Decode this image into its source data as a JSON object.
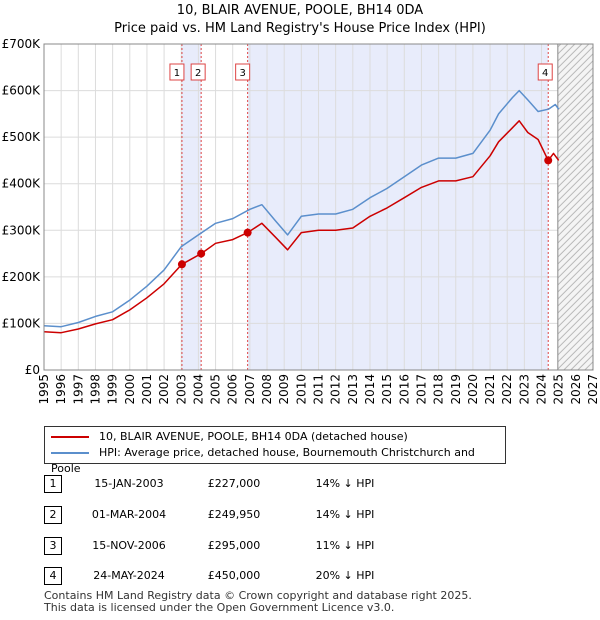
{
  "title_line1": "10, BLAIR AVENUE, POOLE, BH14 0DA",
  "title_line2": "Price paid vs. HM Land Registry's House Price Index (HPI)",
  "colors": {
    "property": "#cc0000",
    "hpi": "#5b8fcc",
    "sale_shade": "#e8ecfb",
    "marker_line": "#dd4444"
  },
  "legend": {
    "property_label": "10, BLAIR AVENUE, POOLE, BH14 0DA (detached house)",
    "hpi_label": "HPI: Average price, detached house, Bournemouth Christchurch and Poole"
  },
  "transactions": [
    {
      "num": "1",
      "date": "15-JAN-2003",
      "price": "£227,000",
      "hpi_diff": "14% ↓ HPI"
    },
    {
      "num": "2",
      "date": "01-MAR-2004",
      "price": "£249,950",
      "hpi_diff": "14% ↓ HPI"
    },
    {
      "num": "3",
      "date": "15-NOV-2006",
      "price": "£295,000",
      "hpi_diff": "11% ↓ HPI"
    },
    {
      "num": "4",
      "date": "24-MAY-2024",
      "price": "£450,000",
      "hpi_diff": "20% ↓ HPI"
    }
  ],
  "footer_line1": "Contains HM Land Registry data © Crown copyright and database right 2025.",
  "footer_line2": "This data is licensed under the Open Government Licence v3.0.",
  "chart_data": {
    "type": "line",
    "title": "10, BLAIR AVENUE, POOLE, BH14 0DA — Price paid vs. HM Land Registry's House Price Index (HPI)",
    "xlabel": "",
    "ylabel": "",
    "xlim": [
      1995,
      2027
    ],
    "ylim": [
      0,
      700000
    ],
    "x_ticks": [
      1995,
      1996,
      1997,
      1998,
      1999,
      2000,
      2001,
      2002,
      2003,
      2004,
      2005,
      2006,
      2007,
      2008,
      2009,
      2010,
      2011,
      2012,
      2013,
      2014,
      2015,
      2016,
      2017,
      2018,
      2019,
      2020,
      2021,
      2022,
      2023,
      2024,
      2025,
      2026,
      2027
    ],
    "y_ticks": [
      {
        "value": 0,
        "label": "£0"
      },
      {
        "value": 100000,
        "label": "£100K"
      },
      {
        "value": 200000,
        "label": "£200K"
      },
      {
        "value": 300000,
        "label": "£300K"
      },
      {
        "value": 400000,
        "label": "£400K"
      },
      {
        "value": 500000,
        "label": "£500K"
      },
      {
        "value": 600000,
        "label": "£600K"
      },
      {
        "value": 700000,
        "label": "£700K"
      }
    ],
    "grid": true,
    "forecast_from": 2024.95,
    "series": [
      {
        "name": "HPI: Average price, detached house, Bournemouth Christchurch and Poole",
        "x": [
          1995,
          1996,
          1997,
          1998,
          1999,
          2000,
          2001,
          2002,
          2003,
          2004,
          2005,
          2006,
          2007,
          2007.7,
          2008.5,
          2009.2,
          2010,
          2011,
          2012,
          2013,
          2014,
          2015,
          2016,
          2017,
          2018,
          2019,
          2020,
          2021,
          2021.5,
          2022.3,
          2022.7,
          2023.2,
          2023.8,
          2024.4,
          2024.8,
          2025
        ],
        "values": [
          95000,
          93000,
          102000,
          115000,
          125000,
          150000,
          180000,
          215000,
          265000,
          290000,
          315000,
          325000,
          345000,
          355000,
          320000,
          290000,
          330000,
          335000,
          335000,
          345000,
          370000,
          390000,
          415000,
          440000,
          455000,
          455000,
          465000,
          515000,
          550000,
          585000,
          600000,
          580000,
          555000,
          560000,
          570000,
          560000
        ]
      },
      {
        "name": "10, BLAIR AVENUE, POOLE, BH14 0DA (detached house)",
        "x": [
          1995,
          1996,
          1997,
          1998,
          1999,
          2000,
          2001,
          2002,
          2003.04,
          2004.16,
          2005,
          2006,
          2006.87,
          2007.7,
          2008.5,
          2009.2,
          2010,
          2011,
          2012,
          2013,
          2014,
          2015,
          2016,
          2017,
          2018,
          2019,
          2020,
          2021,
          2021.5,
          2022.3,
          2022.7,
          2023.2,
          2023.8,
          2024.39,
          2024.7,
          2025
        ],
        "values": [
          82000,
          80000,
          88000,
          99000,
          108000,
          129000,
          155000,
          185000,
          227000,
          249950,
          272000,
          280000,
          295000,
          315000,
          285000,
          258000,
          295000,
          300000,
          300000,
          305000,
          330000,
          348000,
          370000,
          392000,
          406000,
          406000,
          415000,
          460000,
          490000,
          520000,
          535000,
          510000,
          495000,
          450000,
          465000,
          450000
        ]
      }
    ],
    "sales": [
      {
        "num": "1",
        "x": 2003.04,
        "value": 227000
      },
      {
        "num": "2",
        "x": 2004.16,
        "value": 249950
      },
      {
        "num": "3",
        "x": 2006.87,
        "value": 295000
      },
      {
        "num": "4",
        "x": 2024.39,
        "value": 450000
      }
    ]
  }
}
